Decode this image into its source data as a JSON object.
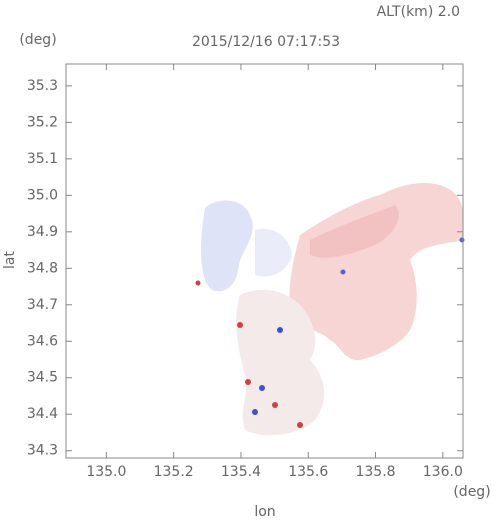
{
  "chart_data": {
    "type": "map",
    "title": "2015/12/16 07:17:53",
    "annotation": "ALT(km) 2.0",
    "xlabel": "lon",
    "ylabel": "lat",
    "xunit": "(deg)",
    "yunit": "(deg)",
    "xlim": [
      134.88,
      136.06
    ],
    "ylim": [
      34.28,
      35.36
    ],
    "xticks": [
      {
        "value": 135,
        "label": "135.0"
      },
      135.2,
      135.4,
      135.6,
      135.8,
      {
        "value": 136,
        "label": "136.0"
      }
    ],
    "yticks": [
      34.3,
      34.4,
      34.5,
      34.6,
      34.7,
      34.8,
      34.9,
      {
        "value": 35,
        "label": "35.0"
      },
      35.1,
      35.2,
      35.3
    ]
  }
}
